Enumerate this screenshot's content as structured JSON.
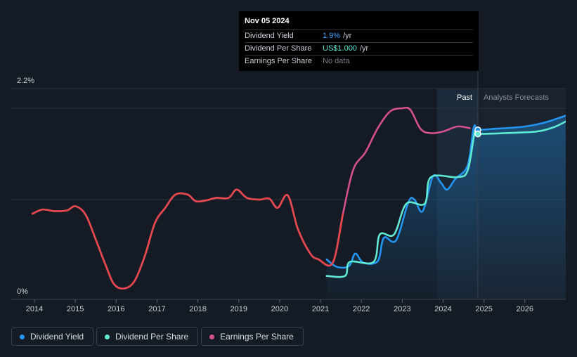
{
  "tooltip": {
    "date": "Nov 05 2024",
    "rows": [
      {
        "label": "Dividend Yield",
        "value": "1.9%",
        "unit": "/yr"
      },
      {
        "label": "Dividend Per Share",
        "value": "US$1.000",
        "unit": "/yr"
      },
      {
        "label": "Earnings Per Share",
        "value": "No data",
        "unit": ""
      }
    ]
  },
  "legend": [
    {
      "label": "Dividend Yield",
      "color": "#2394f0"
    },
    {
      "label": "Dividend Per Share",
      "color": "#5eead4"
    },
    {
      "label": "Earnings Per Share",
      "color": "#d4508f"
    }
  ],
  "regions": {
    "past_label": "Past",
    "forecast_label": "Analysts Forecasts"
  },
  "chart_data": {
    "type": "line",
    "ylabel": "",
    "y_tick_labels": [
      "0%",
      "2.2%"
    ],
    "ylim": [
      0,
      2.2
    ],
    "xlim": [
      2013.7,
      2027.0
    ],
    "x_tick_labels": [
      "2014",
      "2015",
      "2016",
      "2017",
      "2018",
      "2019",
      "2020",
      "2021",
      "2022",
      "2023",
      "2024",
      "2025",
      "2026"
    ],
    "x_ticks": [
      2014,
      2015,
      2016,
      2017,
      2018,
      2019,
      2020,
      2021,
      2022,
      2023,
      2024,
      2025,
      2026
    ],
    "grid": true,
    "past_start": 2023.85,
    "forecast_start": 2024.85,
    "series": [
      {
        "name": "Earnings Per Share",
        "color": "#d4508f",
        "points": [
          [
            2013.95,
            0.93
          ],
          [
            2014.2,
            0.98
          ],
          [
            2014.5,
            0.96
          ],
          [
            2014.8,
            0.97
          ],
          [
            2015.0,
            1.02
          ],
          [
            2015.25,
            0.92
          ],
          [
            2015.5,
            0.62
          ],
          [
            2015.75,
            0.3
          ],
          [
            2015.95,
            0.08
          ],
          [
            2016.2,
            0.03
          ],
          [
            2016.45,
            0.12
          ],
          [
            2016.7,
            0.42
          ],
          [
            2016.95,
            0.82
          ],
          [
            2017.2,
            1.0
          ],
          [
            2017.45,
            1.16
          ],
          [
            2017.75,
            1.16
          ],
          [
            2017.95,
            1.08
          ],
          [
            2018.2,
            1.09
          ],
          [
            2018.45,
            1.12
          ],
          [
            2018.75,
            1.12
          ],
          [
            2018.95,
            1.22
          ],
          [
            2019.2,
            1.12
          ],
          [
            2019.5,
            1.1
          ],
          [
            2019.75,
            1.11
          ],
          [
            2019.95,
            1.0
          ],
          [
            2020.2,
            1.15
          ],
          [
            2020.45,
            0.74
          ],
          [
            2020.75,
            0.45
          ],
          [
            2020.95,
            0.38
          ],
          [
            2021.3,
            0.34
          ],
          [
            2021.55,
            0.93
          ],
          [
            2021.8,
            1.46
          ],
          [
            2022.1,
            1.67
          ],
          [
            2022.4,
            1.96
          ],
          [
            2022.7,
            2.16
          ],
          [
            2023.0,
            2.2
          ],
          [
            2023.2,
            2.18
          ],
          [
            2023.45,
            1.95
          ],
          [
            2023.7,
            1.9
          ],
          [
            2024.0,
            1.92
          ],
          [
            2024.35,
            1.98
          ],
          [
            2024.65,
            1.96
          ]
        ]
      },
      {
        "name": "Dividend Yield",
        "color": "#2394f0",
        "area": true,
        "points": [
          [
            2021.15,
            0.38
          ],
          [
            2021.4,
            0.29
          ],
          [
            2021.7,
            0.3
          ],
          [
            2021.85,
            0.45
          ],
          [
            2022.05,
            0.34
          ],
          [
            2022.4,
            0.36
          ],
          [
            2022.55,
            0.64
          ],
          [
            2022.85,
            0.61
          ],
          [
            2023.15,
            1.07
          ],
          [
            2023.3,
            1.1
          ],
          [
            2023.5,
            0.96
          ],
          [
            2023.75,
            1.38
          ],
          [
            2023.95,
            1.3
          ],
          [
            2024.1,
            1.22
          ],
          [
            2024.3,
            1.35
          ],
          [
            2024.6,
            1.51
          ],
          [
            2024.75,
            1.97
          ],
          [
            2024.85,
            1.94
          ],
          [
            2025.2,
            1.95
          ],
          [
            2026.0,
            1.98
          ],
          [
            2026.5,
            2.03
          ],
          [
            2027.0,
            2.11
          ]
        ]
      },
      {
        "name": "Dividend Per Share",
        "color": "#5eead4",
        "points": [
          [
            2021.15,
            0.18
          ],
          [
            2021.6,
            0.18
          ],
          [
            2021.72,
            0.35
          ],
          [
            2022.3,
            0.35
          ],
          [
            2022.45,
            0.68
          ],
          [
            2022.8,
            0.68
          ],
          [
            2023.1,
            1.05
          ],
          [
            2023.55,
            1.05
          ],
          [
            2023.7,
            1.37
          ],
          [
            2024.35,
            1.37
          ],
          [
            2024.6,
            1.45
          ],
          [
            2024.77,
            1.9
          ],
          [
            2024.85,
            1.89
          ],
          [
            2025.5,
            1.9
          ],
          [
            2026.3,
            1.92
          ],
          [
            2026.7,
            1.97
          ],
          [
            2027.0,
            2.04
          ]
        ]
      }
    ]
  }
}
